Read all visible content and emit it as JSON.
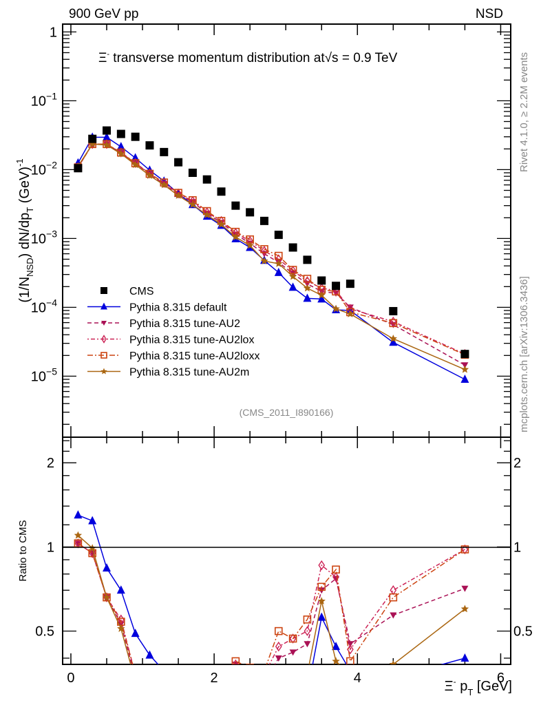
{
  "chart_data": [
    {
      "type": "scatter",
      "panel": "main",
      "title": "Ξ⁻ transverse momentum distribution at √s = 0.9 TeV",
      "top_left_label": "900 GeV pp",
      "top_right_label": "NSD",
      "ylabel": "(1/N_NSD) dN/dp_T (GeV)^-1",
      "yscale": "log",
      "ylim": [
        1.3e-06,
        1.3
      ],
      "xlim": [
        -0.115,
        6.14
      ],
      "ytick_labels": [
        "1",
        "10^-1",
        "10^-2",
        "10^-3",
        "10^-4",
        "10^-5"
      ],
      "ytick_values": [
        1,
        0.1,
        0.01,
        0.001,
        0.0001,
        1e-05
      ],
      "analysis_label": "(CMS_2011_I890166)",
      "legend_position": "center-left",
      "x": [
        0.1,
        0.3,
        0.5,
        0.7,
        0.9,
        1.1,
        1.3,
        1.5,
        1.7,
        1.9,
        2.1,
        2.3,
        2.5,
        2.7,
        2.9,
        3.1,
        3.3,
        3.5,
        3.7,
        3.9,
        4.5,
        5.5
      ],
      "series": [
        {
          "name": "CMS",
          "marker": "square",
          "color": "#000000",
          "line": "none",
          "values": [
            0.0105,
            0.028,
            0.037,
            0.033,
            0.03,
            0.0225,
            0.018,
            0.0128,
            0.009,
            0.0072,
            0.0048,
            0.003,
            0.0024,
            0.0018,
            0.00113,
            0.00074,
            0.00049,
            0.000245,
            0.000205,
            0.00022,
            8.8e-05,
            2.1e-05
          ]
        },
        {
          "name": "Pythia 8.315 default",
          "marker": "triangle-up",
          "color": "#0000dd",
          "line": "solid",
          "values": [
            0.0125,
            0.0295,
            0.0295,
            0.0215,
            0.0148,
            0.0098,
            0.0068,
            0.0045,
            0.0031,
            0.0021,
            0.00155,
            0.00099,
            0.00074,
            0.00048,
            0.00032,
            0.000195,
            0.000135,
            0.000132,
            9.2e-05,
            9e-05,
            3.1e-05,
            9e-06
          ]
        },
        {
          "name": "Pythia 8.315 tune-AU2",
          "marker": "triangle-down",
          "color": "#aa1155",
          "line": "dashed",
          "values": [
            0.0108,
            0.0235,
            0.0235,
            0.0175,
            0.0123,
            0.0086,
            0.0062,
            0.0043,
            0.0034,
            0.0023,
            0.0017,
            0.00115,
            0.00085,
            0.0006,
            0.00045,
            0.00031,
            0.00022,
            0.00017,
            0.00016,
            0.0001,
            5.6e-05,
            1.45e-05
          ]
        },
        {
          "name": "Pythia 8.315 tune-AU2lox",
          "marker": "diamond-open",
          "color": "#cc2255",
          "line": "dash-dot",
          "values": [
            0.0108,
            0.0235,
            0.0235,
            0.0178,
            0.0125,
            0.0088,
            0.0064,
            0.0045,
            0.0035,
            0.0024,
            0.0018,
            0.0012,
            0.00092,
            0.00066,
            0.0005,
            0.00034,
            0.00024,
            0.00019,
            0.000175,
            9.5e-05,
            6.2e-05,
            2.1e-05
          ]
        },
        {
          "name": "Pythia 8.315 tune-AU2loxx",
          "marker": "square-open",
          "color": "#cc4411",
          "line": "dash-dot-long",
          "values": [
            0.0108,
            0.0235,
            0.0235,
            0.0177,
            0.0124,
            0.0087,
            0.0065,
            0.0046,
            0.0036,
            0.0025,
            0.0018,
            0.00125,
            0.00097,
            0.0007,
            0.00056,
            0.00035,
            0.00026,
            0.00018,
            0.00017,
            8.5e-05,
            5.9e-05,
            2.05e-05
          ]
        },
        {
          "name": "Pythia 8.315 tune-AU2m",
          "marker": "star",
          "color": "#aa6611",
          "line": "solid",
          "values": [
            0.0112,
            0.0235,
            0.0228,
            0.017,
            0.0118,
            0.0082,
            0.006,
            0.0042,
            0.0031,
            0.0022,
            0.0016,
            0.00105,
            0.00079,
            0.00047,
            0.00043,
            0.00028,
            0.00019,
            0.00015,
            9.5e-05,
            8e-05,
            3.5e-05,
            1.25e-05
          ]
        }
      ]
    },
    {
      "type": "line",
      "panel": "ratio",
      "ylabel": "Ratio to CMS",
      "xlabel": "Ξ⁻ p_T [GeV]",
      "yscale": "log",
      "ylim": [
        0.38,
        2.47
      ],
      "xlim": [
        -0.115,
        6.14
      ],
      "xtick_labels": [
        "0",
        "2",
        "4",
        "6"
      ],
      "xtick_values": [
        0,
        2,
        4,
        6
      ],
      "ytick_labels": [
        "0.5",
        "1",
        "2"
      ],
      "ytick_values": [
        0.5,
        1,
        2
      ],
      "reference_line": 1,
      "x": [
        0.1,
        0.3,
        0.5,
        0.7,
        0.9,
        1.1,
        1.3,
        1.5,
        1.7,
        1.9,
        2.1,
        2.3,
        2.5,
        2.7,
        2.9,
        3.1,
        3.3,
        3.5,
        3.7,
        3.9,
        4.5,
        5.5
      ],
      "series": [
        {
          "name": "Pythia 8.315 default",
          "values": [
            1.3,
            1.24,
            0.84,
            0.7,
            0.49,
            0.41,
            0.36,
            0.33,
            0.32,
            0.3,
            0.3,
            0.31,
            0.3,
            0.27,
            0.28,
            0.28,
            0.3,
            0.56,
            0.44,
            0.36,
            0.34,
            0.4
          ]
        },
        {
          "name": "Pythia 8.315 tune-AU2",
          "values": [
            1.03,
            0.95,
            0.66,
            0.53,
            0.34,
            0.32,
            0.32,
            0.33,
            0.36,
            0.3,
            0.3,
            0.38,
            0.34,
            0.33,
            0.4,
            0.42,
            0.45,
            0.7,
            0.77,
            0.45,
            0.57,
            0.71
          ]
        },
        {
          "name": "Pythia 8.315 tune-AU2lox",
          "values": [
            1.03,
            0.95,
            0.66,
            0.55,
            0.35,
            0.34,
            0.33,
            0.34,
            0.36,
            0.33,
            0.33,
            0.38,
            0.35,
            0.35,
            0.44,
            0.47,
            0.5,
            0.86,
            0.78,
            0.43,
            0.7,
            0.98
          ]
        },
        {
          "name": "Pythia 8.315 tune-AU2loxx",
          "values": [
            1.03,
            0.95,
            0.66,
            0.54,
            0.35,
            0.34,
            0.33,
            0.34,
            0.36,
            0.33,
            0.33,
            0.39,
            0.37,
            0.36,
            0.5,
            0.47,
            0.55,
            0.72,
            0.83,
            0.39,
            0.66,
            0.98
          ]
        },
        {
          "name": "Pythia 8.315 tune-AU2m",
          "values": [
            1.1,
            0.99,
            0.66,
            0.51,
            0.33,
            0.31,
            0.31,
            0.32,
            0.33,
            0.3,
            0.3,
            0.33,
            0.31,
            0.3,
            0.34,
            0.33,
            0.35,
            0.64,
            0.39,
            0.35,
            0.38,
            0.6
          ]
        }
      ]
    }
  ],
  "side_labels": {
    "rivet": "Rivet 4.1.0, ≥ 2.2M events",
    "mcplots": "mcplots.cern.ch [arXiv:1306.3436]"
  }
}
